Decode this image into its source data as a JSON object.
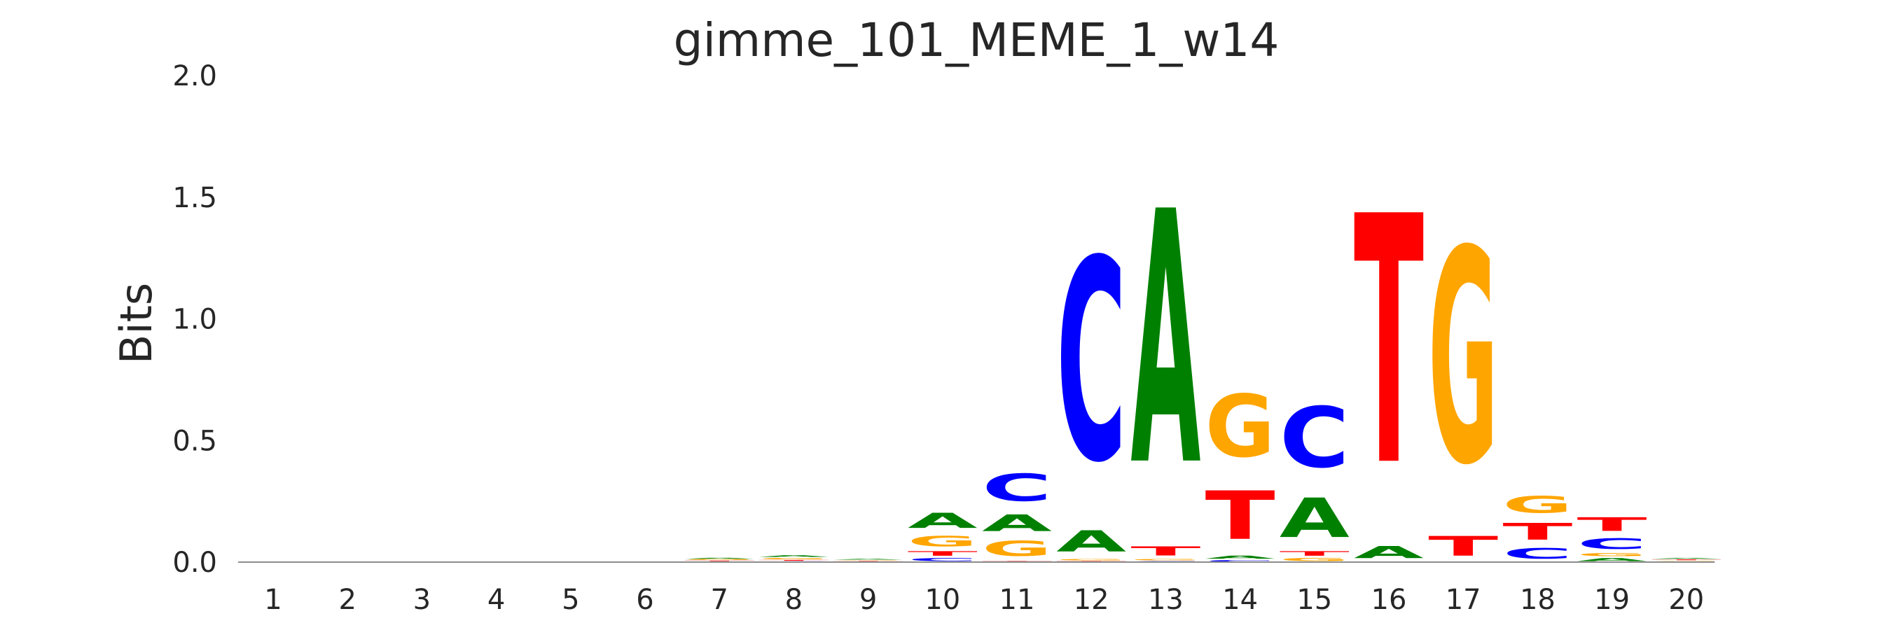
{
  "chart_data": {
    "type": "sequence-logo",
    "title": "gimme_101_MEME_1_w14",
    "ylabel": "Bits",
    "xlabel": "",
    "ylim": [
      0,
      2.0
    ],
    "yticks": [
      "0.0",
      "0.5",
      "1.0",
      "1.5",
      "2.0"
    ],
    "grid": false,
    "colors": {
      "A": "#008000",
      "C": "#0000ff",
      "G": "#ffa500",
      "T": "#ff0000"
    },
    "positions": [
      {
        "label": "1",
        "stack": []
      },
      {
        "label": "2",
        "stack": []
      },
      {
        "label": "3",
        "stack": []
      },
      {
        "label": "4",
        "stack": []
      },
      {
        "label": "5",
        "stack": []
      },
      {
        "label": "6",
        "stack": []
      },
      {
        "label": "7",
        "stack": [
          [
            "C",
            0.003
          ],
          [
            "T",
            0.004
          ],
          [
            "G",
            0.005
          ],
          [
            "A",
            0.007
          ]
        ]
      },
      {
        "label": "8",
        "stack": [
          [
            "C",
            0.004
          ],
          [
            "T",
            0.006
          ],
          [
            "G",
            0.009
          ],
          [
            "A",
            0.011
          ]
        ]
      },
      {
        "label": "9",
        "stack": [
          [
            "C",
            0.002
          ],
          [
            "T",
            0.003
          ],
          [
            "G",
            0.004
          ],
          [
            "A",
            0.005
          ]
        ]
      },
      {
        "label": "10",
        "stack": [
          [
            "C",
            0.02
          ],
          [
            "T",
            0.03
          ],
          [
            "G",
            0.07
          ],
          [
            "A",
            0.1
          ]
        ]
      },
      {
        "label": "11",
        "stack": [
          [
            "T",
            0.005
          ],
          [
            "G",
            0.1
          ],
          [
            "A",
            0.11
          ],
          [
            "C",
            0.18
          ]
        ]
      },
      {
        "label": "12",
        "stack": [
          [
            "T",
            0.005
          ],
          [
            "G",
            0.01
          ],
          [
            "A",
            0.14
          ],
          [
            "C",
            1.33
          ]
        ]
      },
      {
        "label": "13",
        "stack": [
          [
            "C",
            0.005
          ],
          [
            "G",
            0.01
          ],
          [
            "T",
            0.06
          ],
          [
            "A",
            1.67
          ]
        ]
      },
      {
        "label": "14",
        "stack": [
          [
            "C",
            0.01
          ],
          [
            "A",
            0.02
          ],
          [
            "T",
            0.32
          ],
          [
            "G",
            0.41
          ]
        ]
      },
      {
        "label": "15",
        "stack": [
          [
            "G",
            0.02
          ],
          [
            "T",
            0.03
          ],
          [
            "A",
            0.26
          ],
          [
            "C",
            0.4
          ]
        ]
      },
      {
        "label": "16",
        "stack": [
          [
            "A",
            0.08
          ],
          [
            "T",
            1.64
          ]
        ]
      },
      {
        "label": "17",
        "stack": [
          [
            "T",
            0.13
          ],
          [
            "G",
            1.41
          ]
        ]
      },
      {
        "label": "18",
        "stack": [
          [
            "C",
            0.07
          ],
          [
            "T",
            0.11
          ],
          [
            "G",
            0.11
          ]
        ]
      },
      {
        "label": "19",
        "stack": [
          [
            "A",
            0.02
          ],
          [
            "G",
            0.02
          ],
          [
            "C",
            0.07
          ],
          [
            "T",
            0.09
          ]
        ]
      },
      {
        "label": "20",
        "stack": [
          [
            "C",
            0.003
          ],
          [
            "G",
            0.004
          ],
          [
            "T",
            0.005
          ],
          [
            "A",
            0.006
          ]
        ]
      }
    ]
  }
}
